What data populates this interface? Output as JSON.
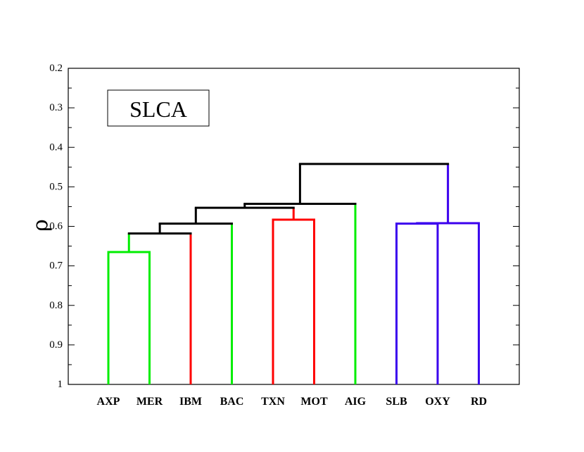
{
  "chart_data": {
    "type": "dendrogram",
    "method": "SLCA",
    "ylabel": "ρ",
    "ylim": [
      0.2,
      1
    ],
    "yticks": [
      "0.2",
      "0.3",
      "0.4",
      "0.5",
      "0.6",
      "0.7",
      "0.8",
      "0.9",
      "1"
    ],
    "leaves": [
      "AXP",
      "MER",
      "IBM",
      "BAC",
      "TXN",
      "MOT",
      "AIG",
      "SLB",
      "OXY",
      "RD"
    ],
    "colors": {
      "green": "#00ee00",
      "red": "#ff0000",
      "blue": "#3b00ee",
      "black": "#000000"
    },
    "merges": [
      {
        "id": "c1",
        "left": "AXP",
        "right": "MER",
        "rho": 0.665,
        "color": "green"
      },
      {
        "id": "c2",
        "left": "c1",
        "right": "IBM",
        "rho": 0.618,
        "color": "black",
        "left_branch_color": "green",
        "right_branch_color": "red"
      },
      {
        "id": "c3",
        "left": "c2",
        "right": "BAC",
        "rho": 0.593,
        "color": "black",
        "left_branch_color": "black",
        "right_branch_color": "green"
      },
      {
        "id": "c4",
        "left": "TXN",
        "right": "MOT",
        "rho": 0.583,
        "color": "red"
      },
      {
        "id": "c5",
        "left": "c3",
        "right": "c4",
        "rho": 0.553,
        "color": "black",
        "left_branch_color": "black",
        "right_branch_color": "red"
      },
      {
        "id": "c6",
        "left": "c5",
        "right": "AIG",
        "rho": 0.543,
        "color": "black",
        "left_branch_color": "black",
        "right_branch_color": "green"
      },
      {
        "id": "c7",
        "left": "SLB",
        "right": "OXY",
        "rho": 0.593,
        "color": "blue"
      },
      {
        "id": "c8",
        "left": "c7",
        "right": "RD",
        "rho": 0.592,
        "color": "blue"
      },
      {
        "id": "c9",
        "left": "c6",
        "right": "c8",
        "rho": 0.442,
        "color": "black",
        "left_branch_color": "black",
        "right_branch_color": "blue"
      }
    ]
  }
}
